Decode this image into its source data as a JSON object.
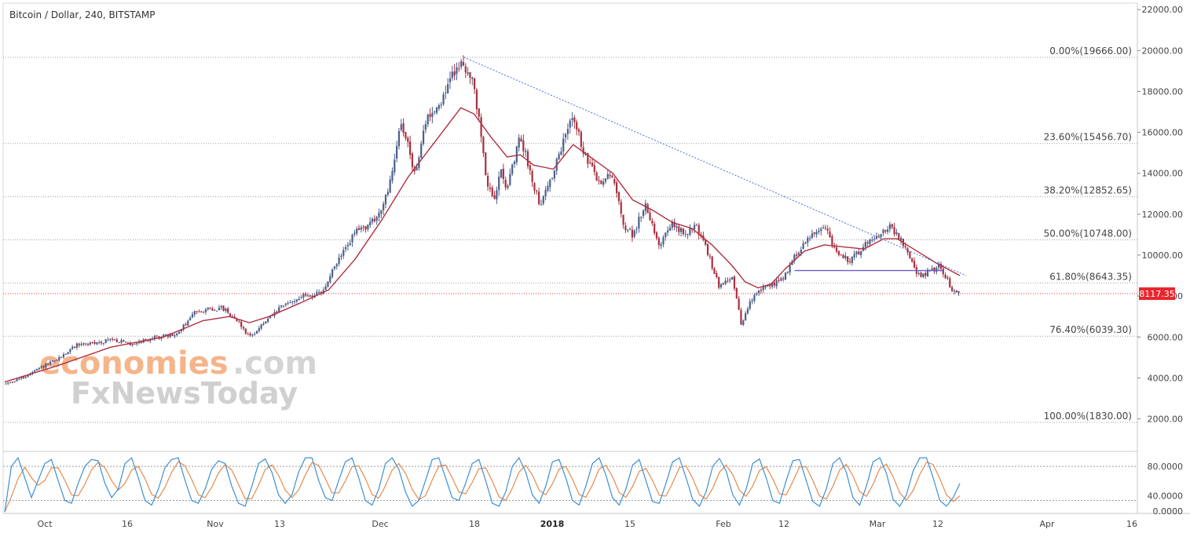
{
  "header": {
    "title": "Bitcoin / Dollar, 240, BITSTAMP"
  },
  "watermark": {
    "line1_part1": "economies",
    "line1_part2": ".com",
    "line2": "FxNewsToday"
  },
  "colors": {
    "candle_up": "#4a5f8a",
    "candle_down": "#a8303f",
    "ma": "#b03040",
    "fib_line": "#a0a0a0",
    "trend_line": "#4a6ee0",
    "support_line": "#6a5fd0",
    "current_price_line": "#e53935",
    "stoch_k": "#3d8fd6",
    "stoch_d": "#e58a4e",
    "stoch_level": "#9a9a9a",
    "price_badge": "#e8262d",
    "axis_text": "#444444",
    "watermark_orange": "#f5b48a",
    "watermark_gray": "#d0d0d0"
  },
  "price_axis": {
    "ticks": [
      "22000.00",
      "20000.00",
      "18000.00",
      "16000.00",
      "14000.00",
      "12000.00",
      "10000.00",
      "8000.00",
      "6000.00",
      "4000.00",
      "2000.00"
    ],
    "current_price": "8117.35"
  },
  "stoch_axis": {
    "ticks": [
      "80.0000",
      "40.0000",
      "0.0000"
    ],
    "levels": [
      80,
      20
    ]
  },
  "time_axis": {
    "labels": [
      "Oct",
      "16",
      "Nov",
      "13",
      "Dec",
      "18",
      "2018",
      "15",
      "Feb",
      "12",
      "Mar",
      "12",
      "Apr",
      "16"
    ]
  },
  "chart_data": {
    "type": "candlestick",
    "title": "Bitcoin / Dollar, 240, BITSTAMP",
    "symbol": "Bitcoin / Dollar",
    "interval": "240",
    "exchange": "BITSTAMP",
    "ylim": [
      0,
      22000
    ],
    "x_labels": [
      "Oct",
      "16",
      "Nov",
      "13",
      "Dec",
      "18",
      "2018",
      "15",
      "Feb",
      "12",
      "Mar",
      "12",
      "Apr",
      "16"
    ],
    "current_price": 8117.35,
    "fibonacci_levels": [
      {
        "label": "0.00%(19666.00)",
        "ratio": 0.0,
        "price": 19666.0
      },
      {
        "label": "23.60%(15456.70)",
        "ratio": 0.236,
        "price": 15456.7
      },
      {
        "label": "38.20%(12852.65)",
        "ratio": 0.382,
        "price": 12852.65
      },
      {
        "label": "50.00%(10748.00)",
        "ratio": 0.5,
        "price": 10748.0
      },
      {
        "label": "61.80%(8643.35)",
        "ratio": 0.618,
        "price": 8643.35
      },
      {
        "label": "76.40%(6039.30)",
        "ratio": 0.764,
        "price": 6039.3
      },
      {
        "label": "100.00%(1830.00)",
        "ratio": 1.0,
        "price": 1830.0
      }
    ],
    "price_path": [
      {
        "t": 0.0,
        "p": 3700
      },
      {
        "t": 3.0,
        "p": 4050
      },
      {
        "t": 6.0,
        "p": 4600
      },
      {
        "t": 8.0,
        "p": 4900
      },
      {
        "t": 11.0,
        "p": 5650
      },
      {
        "t": 14.0,
        "p": 5700
      },
      {
        "t": 16.0,
        "p": 5900
      },
      {
        "t": 19.0,
        "p": 5650
      },
      {
        "t": 23.0,
        "p": 6000
      },
      {
        "t": 26.0,
        "p": 6100
      },
      {
        "t": 29.0,
        "p": 7300
      },
      {
        "t": 33.0,
        "p": 7400
      },
      {
        "t": 35.0,
        "p": 6900
      },
      {
        "t": 37.0,
        "p": 6000
      },
      {
        "t": 39.0,
        "p": 6600
      },
      {
        "t": 42.0,
        "p": 7500
      },
      {
        "t": 45.0,
        "p": 8000
      },
      {
        "t": 48.0,
        "p": 8100
      },
      {
        "t": 50.0,
        "p": 9500
      },
      {
        "t": 53.0,
        "p": 11100
      },
      {
        "t": 56.0,
        "p": 11700
      },
      {
        "t": 58.0,
        "p": 13000
      },
      {
        "t": 60.0,
        "p": 16600
      },
      {
        "t": 62.0,
        "p": 14000
      },
      {
        "t": 64.0,
        "p": 16800
      },
      {
        "t": 66.0,
        "p": 17500
      },
      {
        "t": 68.0,
        "p": 19000
      },
      {
        "t": 69.5,
        "p": 19400
      },
      {
        "t": 71.0,
        "p": 18200
      },
      {
        "t": 72.0,
        "p": 16000
      },
      {
        "t": 73.0,
        "p": 13500
      },
      {
        "t": 74.0,
        "p": 12500
      },
      {
        "t": 75.0,
        "p": 14500
      },
      {
        "t": 76.0,
        "p": 13200
      },
      {
        "t": 78.0,
        "p": 15800
      },
      {
        "t": 80.0,
        "p": 13500
      },
      {
        "t": 81.0,
        "p": 12500
      },
      {
        "t": 83.0,
        "p": 14000
      },
      {
        "t": 84.5,
        "p": 15500
      },
      {
        "t": 86.0,
        "p": 17000
      },
      {
        "t": 87.5,
        "p": 15000
      },
      {
        "t": 90.0,
        "p": 13500
      },
      {
        "t": 92.0,
        "p": 14000
      },
      {
        "t": 93.5,
        "p": 11500
      },
      {
        "t": 95.0,
        "p": 11000
      },
      {
        "t": 97.0,
        "p": 12500
      },
      {
        "t": 99.0,
        "p": 10500
      },
      {
        "t": 101.0,
        "p": 11500
      },
      {
        "t": 103.0,
        "p": 11000
      },
      {
        "t": 104.5,
        "p": 11500
      },
      {
        "t": 106.5,
        "p": 10000
      },
      {
        "t": 108.0,
        "p": 8500
      },
      {
        "t": 110.0,
        "p": 9000
      },
      {
        "t": 111.5,
        "p": 6500
      },
      {
        "t": 112.5,
        "p": 7500
      },
      {
        "t": 114.0,
        "p": 8300
      },
      {
        "t": 116.0,
        "p": 8500
      },
      {
        "t": 118.0,
        "p": 9000
      },
      {
        "t": 120.0,
        "p": 10200
      },
      {
        "t": 122.0,
        "p": 11000
      },
      {
        "t": 124.0,
        "p": 11500
      },
      {
        "t": 126.0,
        "p": 10000
      },
      {
        "t": 128.0,
        "p": 9700
      },
      {
        "t": 130.0,
        "p": 10500
      },
      {
        "t": 132.0,
        "p": 11000
      },
      {
        "t": 134.0,
        "p": 11400
      },
      {
        "t": 136.0,
        "p": 10500
      },
      {
        "t": 138.0,
        "p": 9000
      },
      {
        "t": 140.0,
        "p": 9200
      },
      {
        "t": 141.5,
        "p": 9500
      },
      {
        "t": 143.5,
        "p": 8200
      },
      {
        "t": 144.5,
        "p": 8117
      }
    ],
    "moving_average_path": [
      {
        "t": 0.0,
        "p": 3800
      },
      {
        "t": 8.0,
        "p": 4600
      },
      {
        "t": 16.0,
        "p": 5500
      },
      {
        "t": 24.0,
        "p": 6000
      },
      {
        "t": 30.0,
        "p": 6800
      },
      {
        "t": 34.0,
        "p": 7000
      },
      {
        "t": 37.0,
        "p": 6700
      },
      {
        "t": 40.0,
        "p": 7000
      },
      {
        "t": 45.0,
        "p": 7700
      },
      {
        "t": 49.0,
        "p": 8300
      },
      {
        "t": 53.0,
        "p": 9800
      },
      {
        "t": 57.0,
        "p": 11700
      },
      {
        "t": 61.0,
        "p": 13800
      },
      {
        "t": 65.0,
        "p": 15500
      },
      {
        "t": 69.0,
        "p": 17200
      },
      {
        "t": 71.0,
        "p": 16900
      },
      {
        "t": 73.5,
        "p": 15800
      },
      {
        "t": 76.0,
        "p": 14800
      },
      {
        "t": 78.0,
        "p": 14900
      },
      {
        "t": 80.0,
        "p": 14400
      },
      {
        "t": 83.0,
        "p": 14200
      },
      {
        "t": 86.0,
        "p": 15400
      },
      {
        "t": 89.0,
        "p": 14700
      },
      {
        "t": 92.0,
        "p": 14000
      },
      {
        "t": 95.0,
        "p": 12700
      },
      {
        "t": 98.0,
        "p": 12200
      },
      {
        "t": 101.0,
        "p": 11600
      },
      {
        "t": 104.0,
        "p": 11300
      },
      {
        "t": 107.0,
        "p": 10500
      },
      {
        "t": 110.0,
        "p": 9500
      },
      {
        "t": 112.0,
        "p": 8700
      },
      {
        "t": 114.0,
        "p": 8400
      },
      {
        "t": 116.0,
        "p": 8600
      },
      {
        "t": 118.0,
        "p": 9300
      },
      {
        "t": 121.0,
        "p": 10200
      },
      {
        "t": 124.0,
        "p": 10500
      },
      {
        "t": 127.0,
        "p": 10400
      },
      {
        "t": 130.0,
        "p": 10300
      },
      {
        "t": 133.0,
        "p": 10800
      },
      {
        "t": 135.0,
        "p": 10800
      },
      {
        "t": 138.0,
        "p": 10200
      },
      {
        "t": 141.0,
        "p": 9600
      },
      {
        "t": 144.5,
        "p": 9000
      }
    ],
    "trend_line": {
      "from": {
        "t": 69.5,
        "p": 19666
      },
      "to": {
        "t": 144.5,
        "p": 9000
      }
    },
    "support_line": {
      "from": {
        "t": 119.5,
        "p": 9250
      },
      "to": {
        "t": 142.0,
        "p": 9250
      }
    },
    "stochastic": {
      "k_path": [
        0,
        80,
        95,
        60,
        25,
        55,
        85,
        92,
        55,
        20,
        15,
        50,
        80,
        92,
        90,
        50,
        25,
        40,
        85,
        95,
        60,
        20,
        12,
        40,
        78,
        92,
        95,
        55,
        20,
        15,
        40,
        75,
        90,
        85,
        45,
        15,
        10,
        45,
        85,
        93,
        70,
        30,
        15,
        30,
        70,
        95,
        95,
        55,
        25,
        20,
        55,
        88,
        95,
        60,
        20,
        12,
        40,
        85,
        95,
        75,
        35,
        10,
        20,
        55,
        92,
        95,
        60,
        25,
        20,
        50,
        85,
        92,
        55,
        15,
        10,
        35,
        80,
        95,
        70,
        30,
        15,
        45,
        88,
        92,
        60,
        20,
        12,
        45,
        85,
        95,
        65,
        25,
        12,
        40,
        82,
        92,
        55,
        18,
        15,
        50,
        88,
        95,
        60,
        22,
        10,
        35,
        80,
        94,
        72,
        30,
        12,
        40,
        85,
        93,
        60,
        20,
        15,
        55,
        90,
        92,
        55,
        18,
        10,
        40,
        85,
        95,
        70,
        25,
        12,
        45,
        88,
        95,
        68,
        22,
        10,
        30,
        72,
        95,
        95,
        60,
        20,
        10,
        25,
        50
      ]
    }
  }
}
